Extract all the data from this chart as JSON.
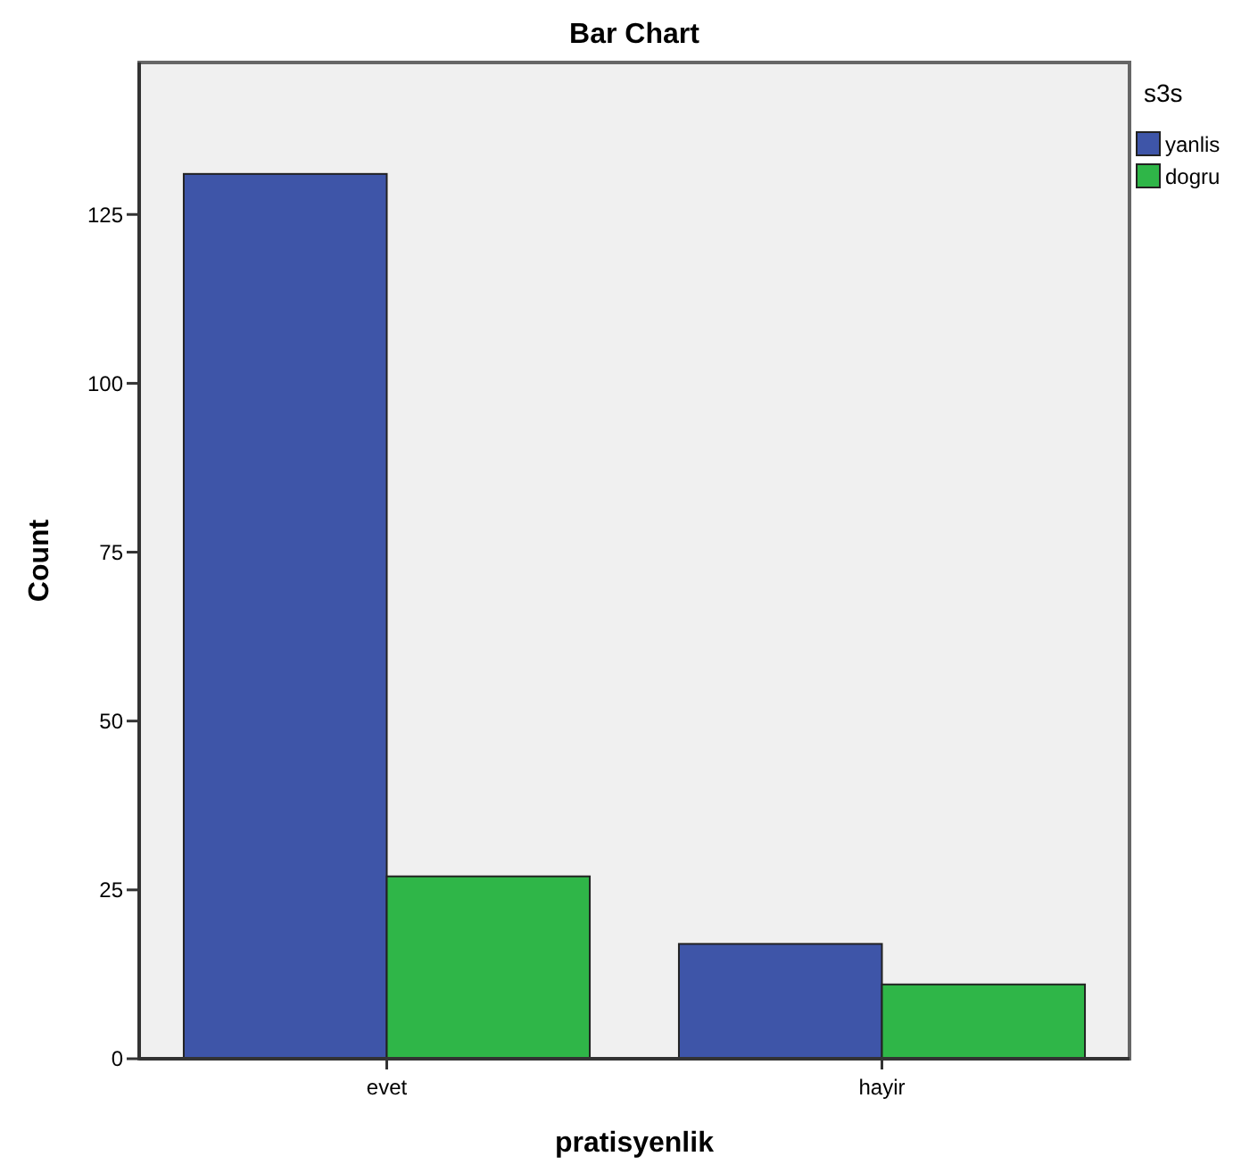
{
  "chart_data": {
    "type": "bar",
    "title": "Bar Chart",
    "xlabel": "pratisyenlik",
    "ylabel": "Count",
    "legend_title": "s3s",
    "categories": [
      "evet",
      "hayir"
    ],
    "series": [
      {
        "name": "yanlis",
        "color": "#3e55a8",
        "values": [
          131,
          17
        ]
      },
      {
        "name": "dogru",
        "color": "#2fb648",
        "values": [
          27,
          11
        ]
      }
    ],
    "ylim": [
      0,
      147.5
    ],
    "yticks": [
      0,
      25,
      50,
      75,
      100,
      125
    ],
    "grid": false,
    "legend": "right"
  }
}
